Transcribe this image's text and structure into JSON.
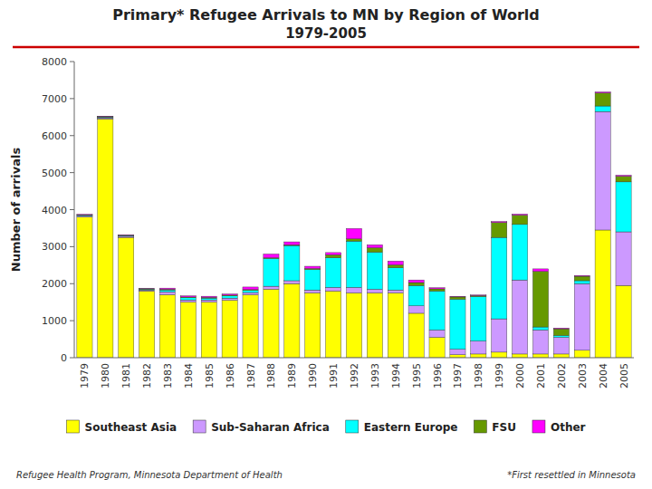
{
  "chart_data": {
    "type": "bar",
    "stacked": true,
    "title": "Primary* Refugee Arrivals to MN by Region of World",
    "subtitle": "1979-2005",
    "y_label": "Number of arrivals",
    "categories": [
      "1979",
      "1980",
      "1981",
      "1982",
      "1983",
      "1984",
      "1985",
      "1986",
      "1987",
      "1988",
      "1989",
      "1990",
      "1991",
      "1992",
      "1993",
      "1994",
      "1995",
      "1996",
      "1997",
      "1998",
      "1999",
      "2000",
      "2001",
      "2002",
      "2003",
      "2004",
      "2005"
    ],
    "series": [
      {
        "name": "Southeast Asia",
        "color": "#FFFF00",
        "values": [
          3800,
          6450,
          3250,
          1800,
          1700,
          1500,
          1500,
          1550,
          1700,
          1850,
          2000,
          1750,
          1800,
          1750,
          1750,
          1750,
          1200,
          550,
          80,
          100,
          150,
          100,
          100,
          100,
          200,
          3450,
          1950
        ]
      },
      {
        "name": "Sub-Saharan Africa",
        "color": "#CC99FF",
        "values": [
          30,
          30,
          30,
          30,
          80,
          60,
          60,
          60,
          60,
          80,
          80,
          80,
          100,
          150,
          100,
          80,
          200,
          200,
          150,
          350,
          900,
          2000,
          650,
          450,
          1800,
          3200,
          1450
        ]
      },
      {
        "name": "Eastern Europe",
        "color": "#00FFFF",
        "values": [
          20,
          20,
          20,
          20,
          50,
          60,
          50,
          60,
          60,
          750,
          950,
          550,
          800,
          1250,
          1000,
          600,
          550,
          1050,
          1350,
          1200,
          2200,
          1500,
          80,
          50,
          80,
          150,
          1350
        ]
      },
      {
        "name": "FSU",
        "color": "#669900",
        "values": [
          10,
          10,
          10,
          10,
          20,
          20,
          20,
          20,
          20,
          20,
          20,
          30,
          80,
          60,
          120,
          80,
          80,
          60,
          60,
          30,
          400,
          250,
          1500,
          180,
          120,
          350,
          150
        ]
      },
      {
        "name": "Other",
        "color": "#FF00FF",
        "values": [
          15,
          15,
          10,
          10,
          30,
          30,
          30,
          30,
          70,
          100,
          80,
          60,
          60,
          280,
          80,
          100,
          70,
          30,
          15,
          15,
          30,
          30,
          70,
          20,
          20,
          30,
          30
        ]
      }
    ],
    "ylim": [
      0,
      8000
    ],
    "yticks": [
      0,
      1000,
      2000,
      3000,
      4000,
      5000,
      6000,
      7000,
      8000
    ],
    "grid": false,
    "legend": "bottom",
    "annotations": [
      "Refugee Health Program, Minnesota Department of Health",
      "*First resettled in Minnesota"
    ]
  }
}
